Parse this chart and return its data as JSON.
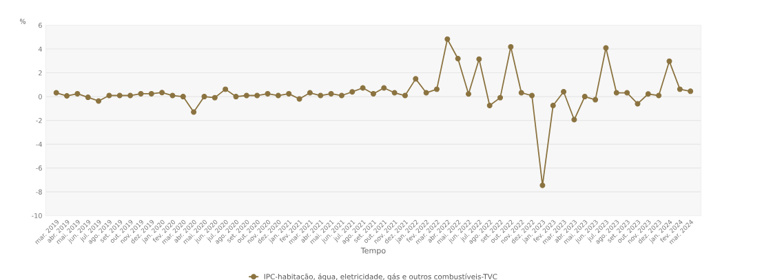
{
  "chart_data": {
    "type": "line",
    "xlabel": "Tempo",
    "ylabel": "%",
    "categories": [
      "mar. 2019",
      "abr. 2019",
      "mai. 2019",
      "jun. 2019",
      "jul. 2019",
      "ago. 2019",
      "set. 2019",
      "out. 2019",
      "nov. 2019",
      "dez. 2019",
      "jan. 2020",
      "fev. 2020",
      "mar. 2020",
      "abr. 2020",
      "mai. 2020",
      "jun. 2020",
      "jul. 2020",
      "ago. 2020",
      "set. 2020",
      "out. 2020",
      "nov. 2020",
      "dez. 2020",
      "jan. 2021",
      "fev. 2021",
      "mar. 2021",
      "abr. 2021",
      "mai. 2021",
      "jun. 2021",
      "jul. 2021",
      "ago. 2021",
      "set. 2021",
      "out. 2021",
      "nov. 2021",
      "dez. 2021",
      "jan. 2022",
      "fev. 2022",
      "mar. 2022",
      "abr. 2022",
      "mai. 2022",
      "jun. 2022",
      "jul. 2022",
      "ago. 2022",
      "set. 2022",
      "out. 2022",
      "nov. 2022",
      "dez. 2022",
      "jan. 2023",
      "fev. 2023",
      "mar. 2023",
      "abr. 2023",
      "mai. 2023",
      "jun. 2023",
      "jul. 2023",
      "ago. 2023",
      "set. 2023",
      "out. 2023",
      "nov. 2023",
      "dez. 2023",
      "jan. 2024",
      "fev. 2024",
      "mar. 2024"
    ],
    "series": [
      {
        "name": "IPC-habitação, água, eletricidade, gás e outros combustíveis-TVC",
        "color": "#8b7340",
        "values": [
          0.32,
          0.06,
          0.24,
          -0.06,
          -0.37,
          0.09,
          0.09,
          0.09,
          0.24,
          0.24,
          0.34,
          0.09,
          0,
          -1.3,
          0,
          -0.09,
          0.62,
          0,
          0.09,
          0.09,
          0.24,
          0.09,
          0.24,
          -0.2,
          0.32,
          0.09,
          0.24,
          0.09,
          0.4,
          0.73,
          0.24,
          0.73,
          0.32,
          0.09,
          1.49,
          0.32,
          0.62,
          4.83,
          3.19,
          0.22,
          3.15,
          -0.75,
          -0.09,
          4.18,
          0.32,
          0.09,
          -7.46,
          -0.75,
          0.41,
          -1.94,
          0,
          -0.26,
          4.09,
          0.32,
          0.32,
          -0.6,
          0.22,
          0.09,
          2.97,
          0.62,
          0.45
        ]
      }
    ],
    "ylim": [
      -10,
      6
    ],
    "yticks": [
      -10,
      -8,
      -6,
      -4,
      -2,
      0,
      2,
      4,
      6
    ],
    "grid": "y",
    "legend": "bottom",
    "marker": "circle",
    "line_style": "solid"
  }
}
